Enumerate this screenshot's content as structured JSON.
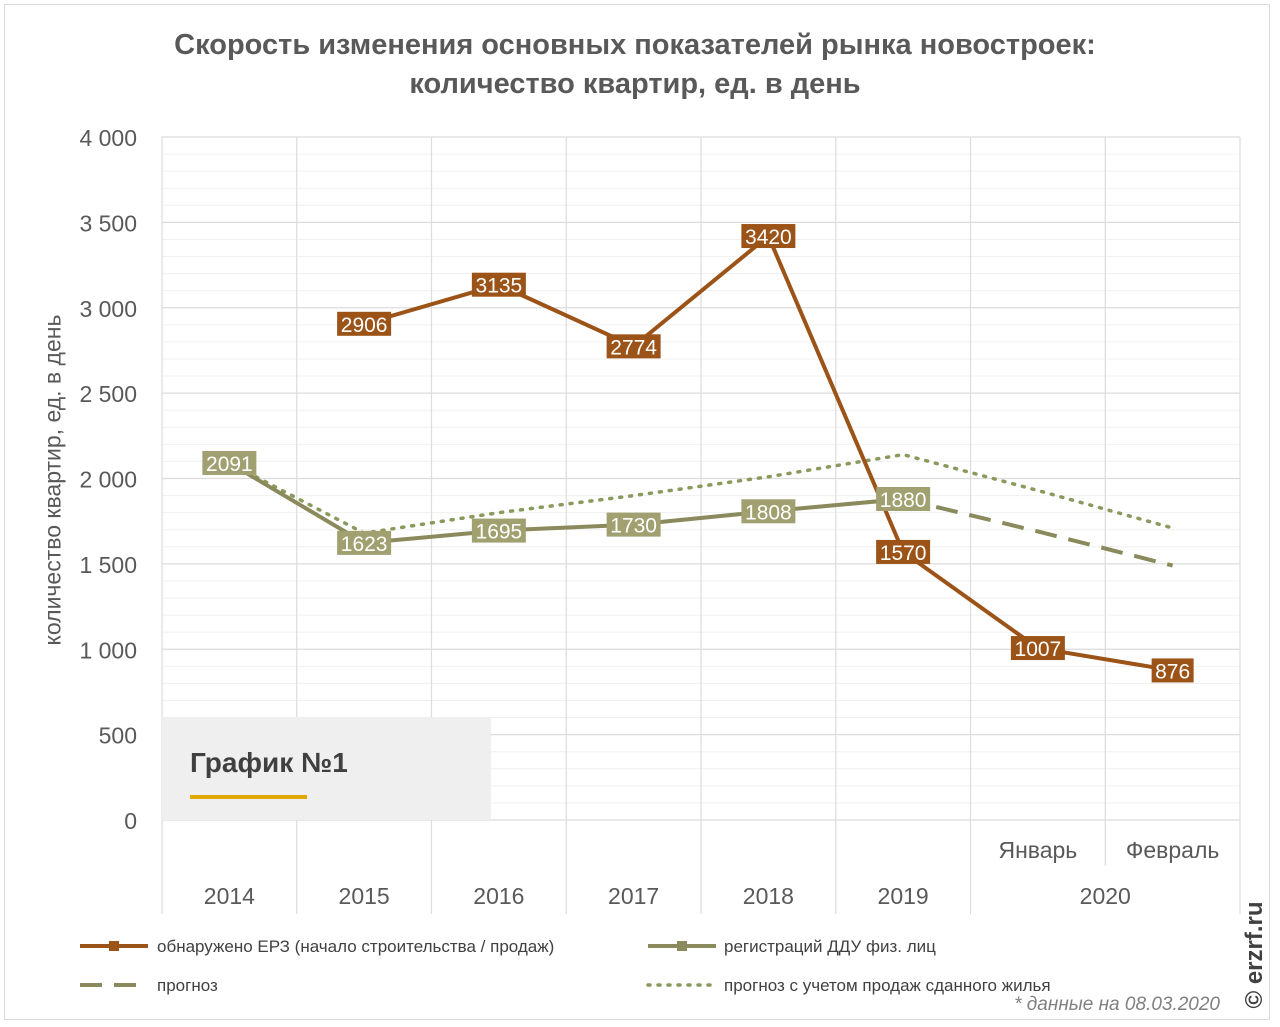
{
  "chart_data": {
    "type": "line",
    "title_line1": "Скорость изменения основных показателей рынка новостроек:",
    "title_line2": "количество квартир, ед. в день",
    "ylabel": "количество квартир, ед. в день",
    "ylim": [
      0,
      4000
    ],
    "yticks": [
      "0",
      "500",
      "1 000",
      "1 500",
      "2 000",
      "2 500",
      "3 000",
      "3 500",
      "4 000"
    ],
    "categories": [
      "2014",
      "2015",
      "2016",
      "2017",
      "2018",
      "2019",
      "Январь",
      "Февраль"
    ],
    "year_group": "2020",
    "series": [
      {
        "name": "обнаружено ЕРЗ (начало строительства / продаж)",
        "style": "solid-brown",
        "color": "#9c5317",
        "values": [
          null,
          2906,
          3135,
          2774,
          3420,
          1570,
          1007,
          876
        ],
        "labels": [
          "",
          "2906",
          "3135",
          "2774",
          "3420",
          "1570",
          "1007",
          "876"
        ]
      },
      {
        "name": "регистраций ДДУ физ. лиц",
        "style": "solid-olive",
        "color": "#8a8a5c",
        "values": [
          2091,
          1623,
          1695,
          1730,
          1808,
          1880,
          null,
          null
        ],
        "labels": [
          "2091",
          "1623",
          "1695",
          "1730",
          "1808",
          "1880",
          "",
          ""
        ]
      },
      {
        "name": "прогноз",
        "style": "dashed",
        "color": "#8a8a5c",
        "values": [
          null,
          null,
          null,
          null,
          null,
          1880,
          1690,
          1490
        ]
      },
      {
        "name": "прогноз с учетом продаж сданного жилья",
        "style": "dotted",
        "color": "#8a9a5c",
        "values": [
          2091,
          1680,
          1800,
          1900,
          2010,
          2140,
          1930,
          1710
        ]
      }
    ]
  },
  "badge": {
    "text": "График №1"
  },
  "note": "* данные на 08.03.2020",
  "watermark": "© erzrf.ru"
}
